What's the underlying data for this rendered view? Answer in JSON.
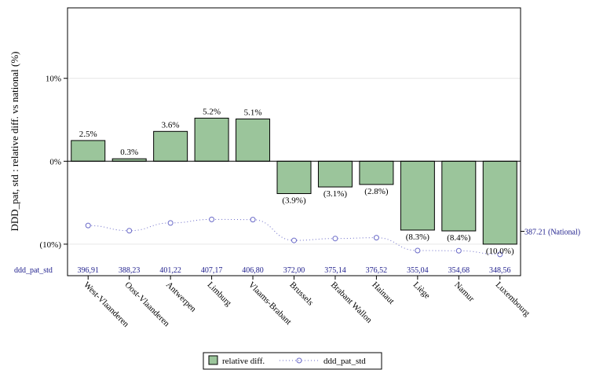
{
  "chart_data": {
    "type": "bar",
    "ylabel": "DDD_pat, std : relative diff. vs national (%)",
    "ylim": [
      -13.8,
      18.5
    ],
    "yticks": [
      {
        "value": 10,
        "label": "10%"
      },
      {
        "value": 0,
        "label": "0%"
      },
      {
        "value": -10,
        "label": "(10%)"
      }
    ],
    "categories": [
      "West-Vlaanderen",
      "Oost-Vlaanderen",
      "Antwerpen",
      "Limburg",
      "Vlaams-Brabant",
      "Brussels",
      "Brabant Wallon",
      "Hainaut",
      "Liège",
      "Namur",
      "Luxembourg"
    ],
    "series": [
      {
        "name": "relative diff.",
        "kind": "bar",
        "color": "#9bc59b",
        "values": [
          2.5,
          0.3,
          3.6,
          5.2,
          5.1,
          -3.9,
          -3.1,
          -2.8,
          -8.3,
          -8.4,
          -10.0
        ],
        "labels": [
          "2.5%",
          "0.3%",
          "3.6%",
          "5.2%",
          "5.1%",
          "(3.9%)",
          "(3.1%)",
          "(2.8%)",
          "(8.3%)",
          "(8.4%)",
          "(10.0%)"
        ]
      },
      {
        "name": "ddd_pat_std",
        "kind": "line",
        "color": "#6a6ac8",
        "values": [
          396.91,
          388.23,
          401.22,
          407.17,
          406.8,
          372.0,
          375.14,
          376.52,
          355.04,
          354.68,
          348.56
        ],
        "labels": [
          "396,91",
          "388,23",
          "401,22",
          "407,17",
          "406,80",
          "372,00",
          "375,14",
          "376,52",
          "355,04",
          "354,68",
          "348,56"
        ],
        "range": [
          330,
          430
        ]
      }
    ],
    "ddd_row_title": "ddd_pat_std",
    "reference": {
      "value": 387.21,
      "label": "387.21 (National)"
    },
    "legend": {
      "placement": "bottom-center",
      "items": [
        "relative diff.",
        "ddd_pat_std"
      ]
    },
    "grid": "horizontal-at-ticks"
  }
}
